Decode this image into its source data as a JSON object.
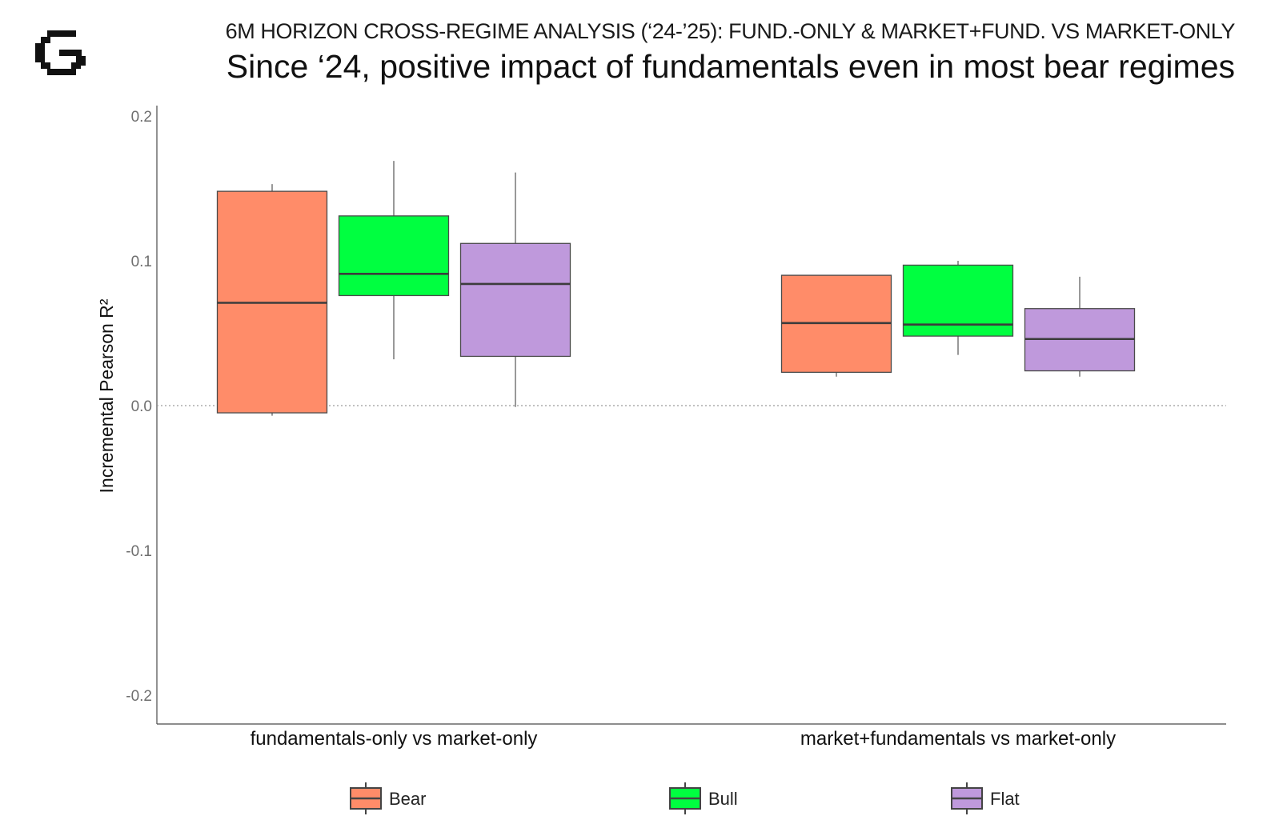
{
  "header": {
    "kicker": "6M HORIZON CROSS-REGIME ANALYSIS (‘24-’25): FUND.-ONLY & MARKET+FUND. VS MARKET-ONLY",
    "headline": "Since ‘24, positive impact of fundamentals even in most bear regimes",
    "logo_icon": "g-logo-icon"
  },
  "chart_data": {
    "type": "box",
    "title": "6M HORIZON CROSS-REGIME ANALYSIS (‘24-’25): FUND.-ONLY & MARKET+FUND. VS MARKET-ONLY",
    "subtitle": "Since ‘24, positive impact of fundamentals even in most bear regimes",
    "xlabel": "",
    "ylabel": "Incremental Pearson R²",
    "ylim": [
      -0.2,
      0.2
    ],
    "yticks": [
      0.2,
      0.1,
      0.0,
      -0.1,
      -0.2
    ],
    "ytick_labels": [
      "0.2",
      "0.1",
      "0.0",
      "-0.1",
      "-0.2"
    ],
    "zero_reference_line": "dotted",
    "grid": false,
    "legend_position": "bottom",
    "categories": [
      "fundamentals-only vs market-only",
      "market+fundamentals vs market-only"
    ],
    "series": [
      {
        "name": "Bear",
        "color": "#FF8C69",
        "boxes": [
          {
            "whisker_low": -0.007,
            "q1": -0.005,
            "median": 0.071,
            "q3": 0.148,
            "whisker_high": 0.153
          },
          {
            "whisker_low": 0.02,
            "q1": 0.023,
            "median": 0.057,
            "q3": 0.09,
            "whisker_high": 0.09
          }
        ]
      },
      {
        "name": "Bull",
        "color": "#00FF40",
        "boxes": [
          {
            "whisker_low": 0.032,
            "q1": 0.076,
            "median": 0.091,
            "q3": 0.131,
            "whisker_high": 0.169
          },
          {
            "whisker_low": 0.035,
            "q1": 0.048,
            "median": 0.056,
            "q3": 0.097,
            "whisker_high": 0.1
          }
        ]
      },
      {
        "name": "Flat",
        "color": "#BF99DC",
        "boxes": [
          {
            "whisker_low": -0.001,
            "q1": 0.034,
            "median": 0.084,
            "q3": 0.112,
            "whisker_high": 0.161
          },
          {
            "whisker_low": 0.02,
            "q1": 0.024,
            "median": 0.046,
            "q3": 0.067,
            "whisker_high": 0.089
          }
        ]
      }
    ]
  }
}
